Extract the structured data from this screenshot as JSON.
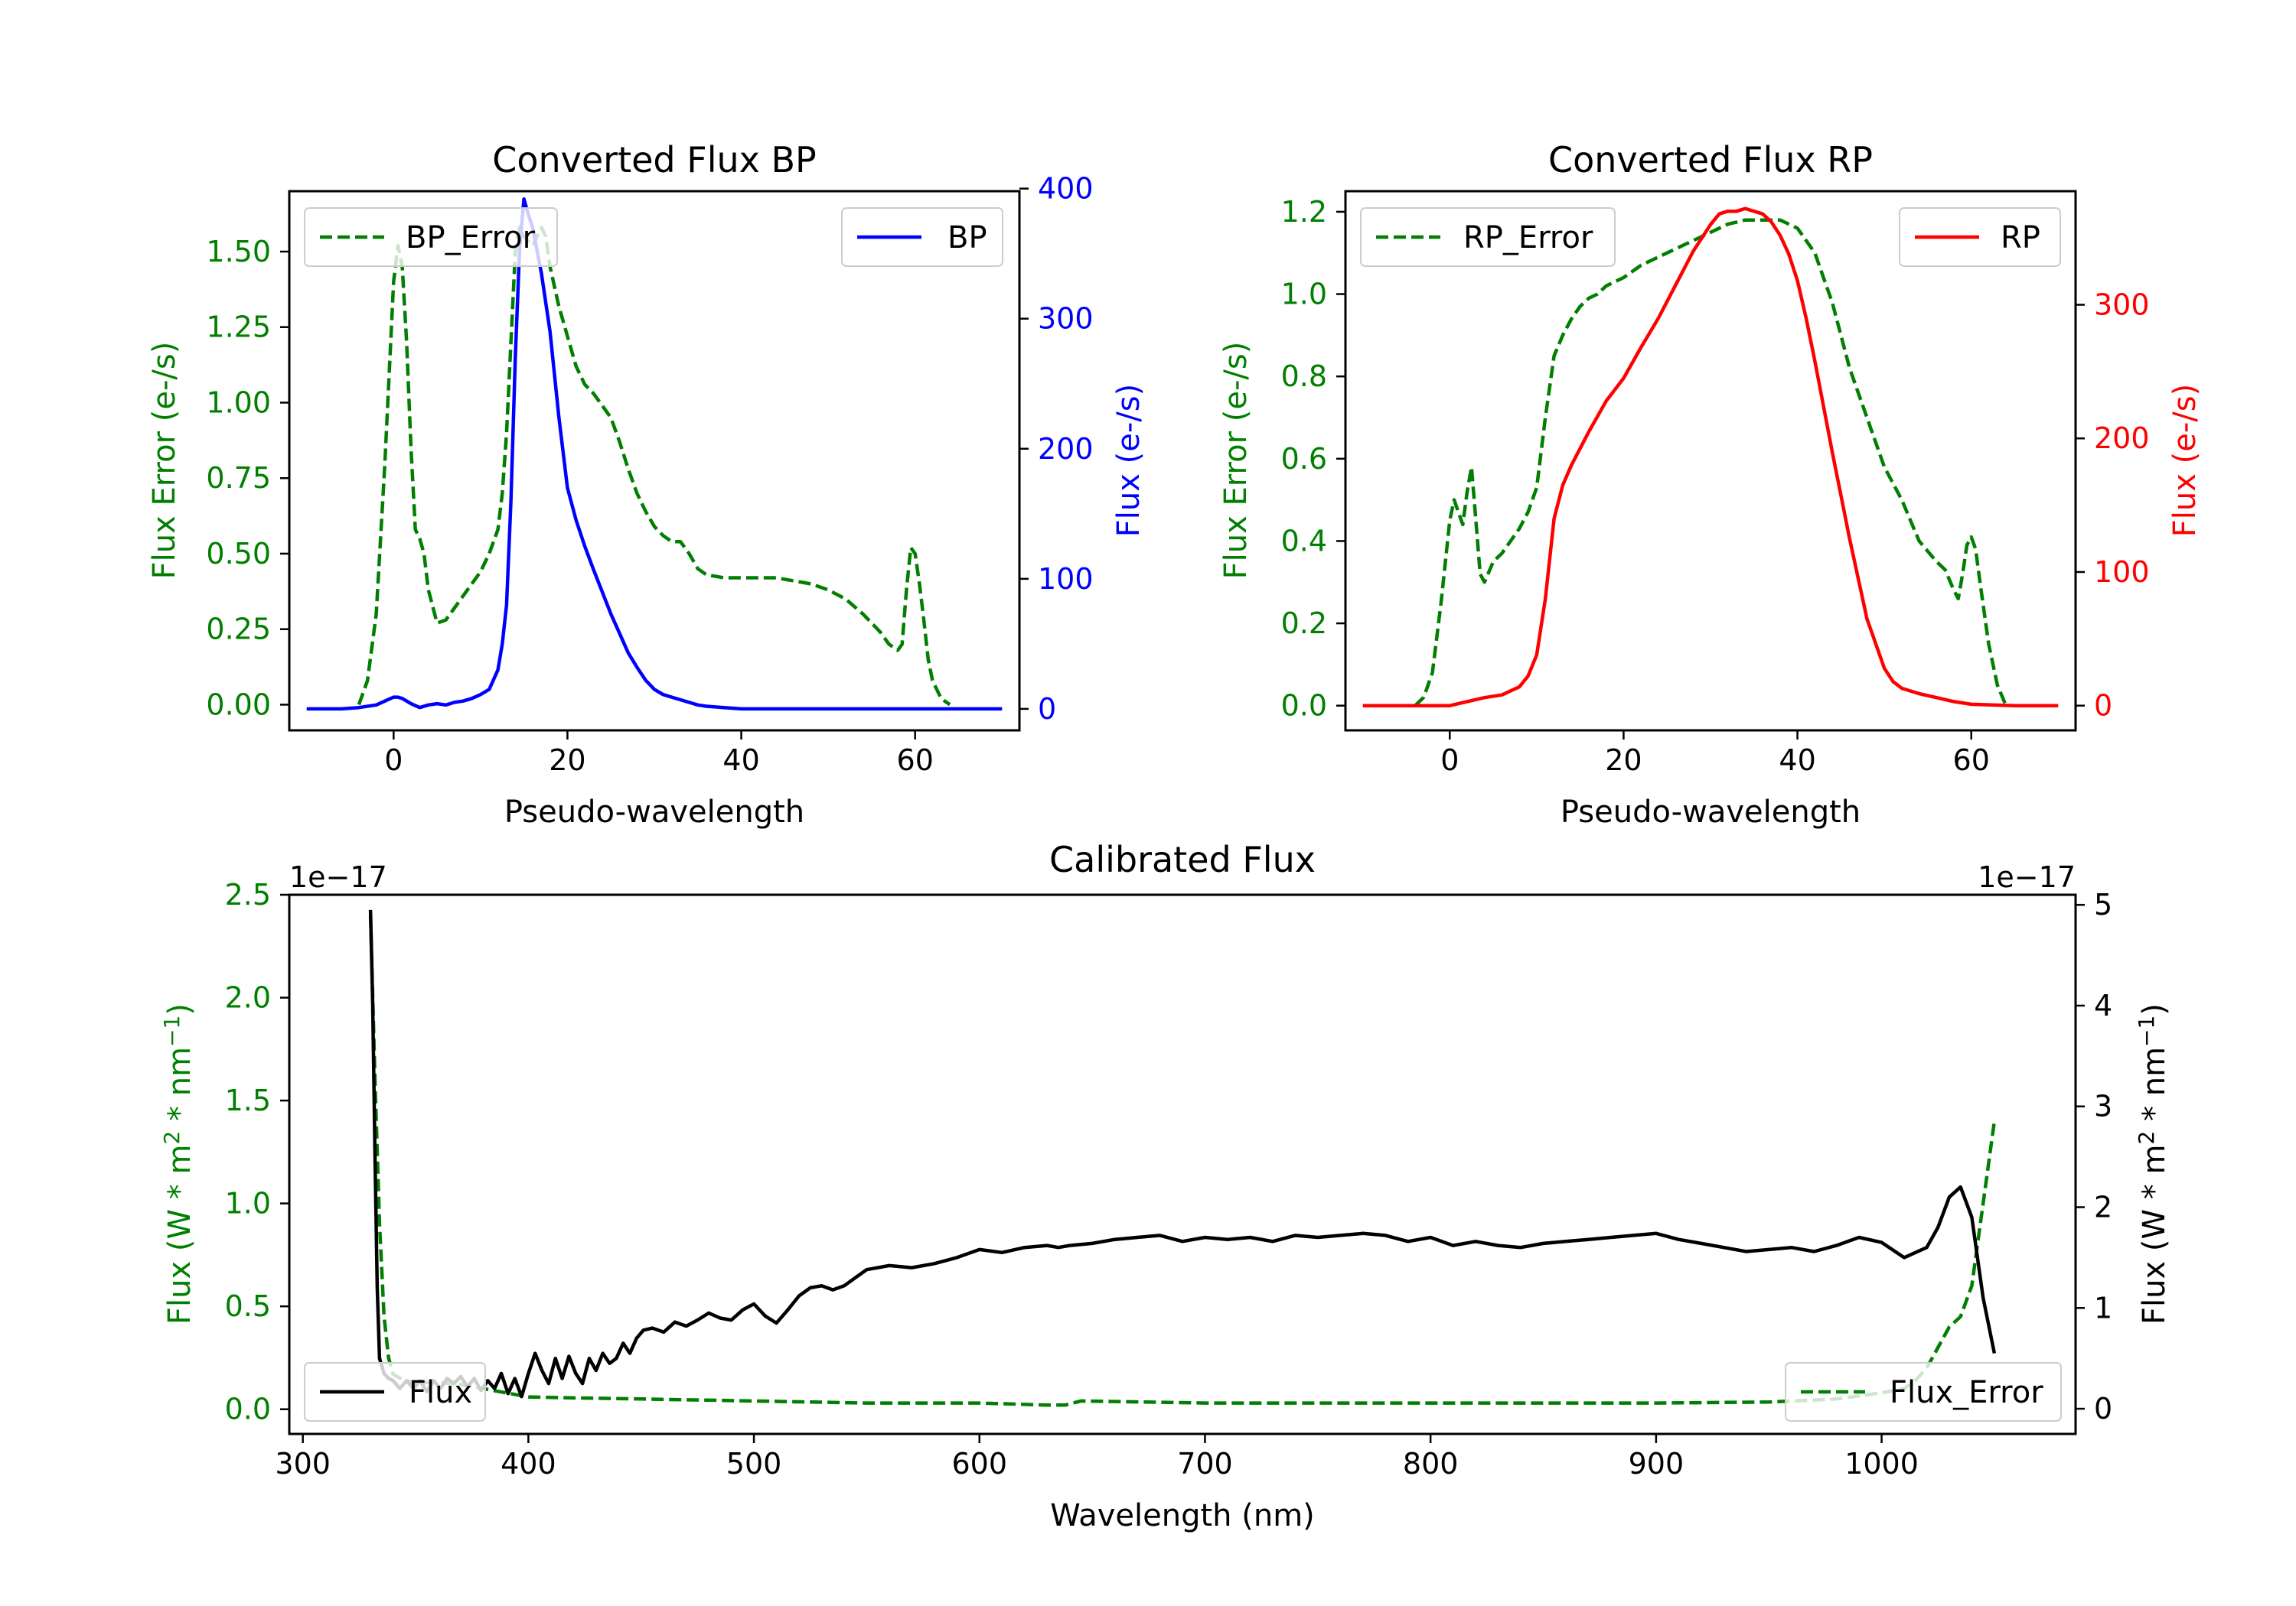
{
  "colors": {
    "green": "#007f00",
    "blue": "#0000ff",
    "red": "#ff0000",
    "black": "#000000"
  },
  "chart_data": [
    {
      "id": "bp",
      "type": "line",
      "title": "Converted Flux BP",
      "xlabel": "Pseudo-wavelength",
      "ylabel_left": "Flux Error (e-/s)",
      "ylabel_right": "Flux (e-/s)",
      "xlim": [
        -12,
        72
      ],
      "ylim_left": [
        -0.085,
        1.7
      ],
      "ylim_right": [
        -16.5,
        398
      ],
      "xticks": [
        0,
        20,
        40,
        60
      ],
      "xtick_labels": [
        "0",
        "20",
        "40",
        "60"
      ],
      "yticks_left": [
        0,
        0.25,
        0.5,
        0.75,
        1.0,
        1.25,
        1.5
      ],
      "ytick_labels_left": [
        "0.00",
        "0.25",
        "0.50",
        "0.75",
        "1.00",
        "1.25",
        "1.50"
      ],
      "yticks_right": [
        0,
        100,
        200,
        300,
        400
      ],
      "ytick_labels_right": [
        "0",
        "100",
        "200",
        "300",
        "400"
      ],
      "legend_left": {
        "label": "BP_Error",
        "position": "upper left"
      },
      "legend_right": {
        "label": "BP",
        "position": "upper right"
      },
      "series": [
        {
          "name": "BP_Error",
          "axis": "left",
          "color": "#007f00",
          "style": "dashed",
          "x": [
            -4,
            -3,
            -2,
            -1,
            0,
            0.5,
            1,
            1.5,
            2,
            2.5,
            3,
            3.5,
            4,
            5,
            6,
            7,
            8,
            9,
            10,
            11,
            12,
            12.5,
            13,
            13.5,
            14,
            14.5,
            15,
            16,
            17,
            17.5,
            18,
            19,
            20,
            21,
            22,
            23,
            24,
            25,
            26,
            27,
            28,
            29,
            30,
            31,
            32,
            33,
            34,
            35,
            36,
            38,
            40,
            42,
            44,
            46,
            48,
            50,
            52,
            54,
            56,
            57,
            58,
            58.5,
            59,
            59.5,
            60,
            60.5,
            61,
            61.5,
            62,
            63,
            64
          ],
          "values": [
            0.0,
            0.08,
            0.3,
            0.8,
            1.4,
            1.52,
            1.45,
            1.2,
            0.85,
            0.58,
            0.55,
            0.5,
            0.38,
            0.27,
            0.28,
            0.32,
            0.36,
            0.4,
            0.44,
            0.5,
            0.58,
            0.7,
            0.9,
            1.2,
            1.5,
            1.58,
            1.55,
            1.52,
            1.58,
            1.55,
            1.45,
            1.32,
            1.22,
            1.12,
            1.06,
            1.03,
            0.99,
            0.95,
            0.87,
            0.78,
            0.7,
            0.64,
            0.59,
            0.56,
            0.54,
            0.54,
            0.5,
            0.45,
            0.43,
            0.42,
            0.42,
            0.42,
            0.42,
            0.41,
            0.4,
            0.38,
            0.35,
            0.3,
            0.24,
            0.2,
            0.18,
            0.2,
            0.38,
            0.52,
            0.5,
            0.4,
            0.28,
            0.15,
            0.08,
            0.02,
            0.0
          ]
        },
        {
          "name": "BP",
          "axis": "right",
          "color": "#0000ff",
          "style": "solid",
          "x": [
            -10,
            -8,
            -6,
            -4,
            -2,
            -1,
            0,
            0.5,
            1,
            2,
            3,
            4,
            5,
            6,
            7,
            8,
            9,
            10,
            11,
            12,
            12.5,
            13,
            13.5,
            14,
            14.5,
            15,
            15.5,
            16,
            17,
            18,
            19,
            20,
            21,
            22,
            23,
            24,
            25,
            26,
            27,
            28,
            29,
            30,
            31,
            32,
            33,
            34,
            35,
            36,
            38,
            40,
            45,
            50,
            55,
            60,
            65,
            70
          ],
          "values": [
            0,
            0,
            0,
            1,
            3,
            6,
            9,
            9,
            8,
            4,
            1,
            3,
            4,
            3,
            5,
            6,
            8,
            11,
            15,
            30,
            50,
            80,
            160,
            270,
            355,
            392,
            380,
            370,
            335,
            290,
            225,
            170,
            145,
            125,
            107,
            90,
            73,
            58,
            43,
            32,
            22,
            15,
            11,
            9,
            7,
            5,
            3,
            2,
            1,
            0,
            0,
            0,
            0,
            0,
            0,
            0
          ]
        }
      ]
    },
    {
      "id": "rp",
      "type": "line",
      "title": "Converted Flux RP",
      "xlabel": "Pseudo-wavelength",
      "ylabel_left": "Flux Error (e-/s)",
      "ylabel_right": "Flux (e-/s)",
      "xlim": [
        -12,
        72
      ],
      "ylim_left": [
        -0.06,
        1.25
      ],
      "ylim_right": [
        -18.5,
        385
      ],
      "xticks": [
        0,
        20,
        40,
        60
      ],
      "xtick_labels": [
        "0",
        "20",
        "40",
        "60"
      ],
      "yticks_left": [
        0,
        0.2,
        0.4,
        0.6,
        0.8,
        1.0,
        1.2
      ],
      "ytick_labels_left": [
        "0.0",
        "0.2",
        "0.4",
        "0.6",
        "0.8",
        "1.0",
        "1.2"
      ],
      "yticks_right": [
        0,
        100,
        200,
        300
      ],
      "ytick_labels_right": [
        "0",
        "100",
        "200",
        "300"
      ],
      "legend_left": {
        "label": "RP_Error",
        "position": "upper left"
      },
      "legend_right": {
        "label": "RP",
        "position": "upper right"
      },
      "series": [
        {
          "name": "RP_Error",
          "axis": "left",
          "color": "#007f00",
          "style": "dashed",
          "x": [
            -4,
            -3,
            -2,
            -1,
            0,
            0.5,
            1,
            1.5,
            2,
            2.5,
            3,
            3.5,
            4,
            5,
            6,
            7,
            8,
            9,
            10,
            11,
            12,
            13,
            14,
            15,
            16,
            17,
            18,
            19,
            20,
            22,
            24,
            26,
            28,
            30,
            32,
            34,
            36,
            38,
            40,
            42,
            43,
            44,
            45,
            46,
            48,
            50,
            52,
            54,
            56,
            57,
            58,
            58.5,
            59,
            59.5,
            60,
            60.5,
            61,
            62,
            63,
            64
          ],
          "values": [
            0.0,
            0.02,
            0.08,
            0.25,
            0.45,
            0.5,
            0.47,
            0.44,
            0.52,
            0.58,
            0.45,
            0.32,
            0.3,
            0.35,
            0.37,
            0.4,
            0.43,
            0.47,
            0.53,
            0.7,
            0.85,
            0.9,
            0.94,
            0.97,
            0.99,
            1.0,
            1.02,
            1.03,
            1.04,
            1.07,
            1.09,
            1.11,
            1.13,
            1.15,
            1.17,
            1.18,
            1.18,
            1.18,
            1.16,
            1.1,
            1.04,
            0.98,
            0.9,
            0.82,
            0.7,
            0.58,
            0.5,
            0.4,
            0.35,
            0.33,
            0.28,
            0.26,
            0.32,
            0.39,
            0.41,
            0.38,
            0.3,
            0.15,
            0.05,
            0.0
          ]
        },
        {
          "name": "RP",
          "axis": "right",
          "color": "#ff0000",
          "style": "solid",
          "x": [
            -10,
            -6,
            -2,
            0,
            2,
            4,
            6,
            8,
            9,
            10,
            11,
            12,
            13,
            14,
            16,
            18,
            20,
            22,
            24,
            26,
            28,
            30,
            31,
            32,
            33,
            34,
            35,
            36,
            37,
            38,
            39,
            40,
            41,
            42,
            44,
            46,
            48,
            50,
            51,
            52,
            53,
            54,
            56,
            58,
            60,
            65,
            70
          ],
          "values": [
            0,
            0,
            0,
            0,
            3,
            6,
            8,
            14,
            22,
            38,
            80,
            140,
            165,
            180,
            205,
            228,
            245,
            268,
            290,
            315,
            340,
            360,
            368,
            370,
            370,
            372,
            370,
            368,
            362,
            352,
            338,
            318,
            290,
            258,
            190,
            125,
            65,
            28,
            18,
            13,
            11,
            9,
            6,
            3,
            1,
            0,
            0
          ]
        }
      ]
    },
    {
      "id": "calibrated",
      "type": "line",
      "title": "Calibrated Flux",
      "xlabel": "Wavelength (nm)",
      "ylabel_left": "Flux (W * m2 * nm-1)",
      "ylabel_right": "Flux (W * m2 * nm-1)",
      "ylabel_sup": "2",
      "ylabel_exp": "−1",
      "ylabel_prefix": "Flux (W * m",
      "ylabel_mid": " * nm",
      "ylabel_suffix": ")",
      "offset_left": "1e−17",
      "offset_right": "1e−17",
      "xlim": [
        294,
        1086
      ],
      "ylim_left": [
        -0.12,
        2.5
      ],
      "ylim_right": [
        -0.25,
        5.1
      ],
      "xticks": [
        300,
        400,
        500,
        600,
        700,
        800,
        900,
        1000
      ],
      "xtick_labels": [
        "300",
        "400",
        "500",
        "600",
        "700",
        "800",
        "900",
        "1000"
      ],
      "yticks_left": [
        0,
        0.5,
        1.0,
        1.5,
        2.0,
        2.5
      ],
      "ytick_labels_left": [
        "0.0",
        "0.5",
        "1.0",
        "1.5",
        "2.0",
        "2.5"
      ],
      "yticks_right": [
        0,
        1,
        2,
        3,
        4,
        5
      ],
      "ytick_labels_right": [
        "0",
        "1",
        "2",
        "3",
        "4",
        "5"
      ],
      "legend_left": {
        "label": "Flux",
        "position": "lower left"
      },
      "legend_right": {
        "label": "Flux_Error",
        "position": "lower right"
      },
      "series": [
        {
          "name": "Flux_Error",
          "axis": "left",
          "color": "#007f00",
          "style": "dashed",
          "x": [
            330,
            332,
            334,
            336,
            338,
            340,
            345,
            350,
            360,
            370,
            380,
            390,
            400,
            420,
            450,
            500,
            550,
            600,
            630,
            638,
            645,
            700,
            750,
            800,
            850,
            900,
            950,
            980,
            1000,
            1010,
            1015,
            1020,
            1025,
            1030,
            1035,
            1040,
            1045,
            1050
          ],
          "values": [
            2.4,
            1.6,
            0.9,
            0.45,
            0.25,
            0.17,
            0.14,
            0.13,
            0.13,
            0.12,
            0.1,
            0.08,
            0.06,
            0.055,
            0.05,
            0.04,
            0.03,
            0.03,
            0.02,
            0.02,
            0.04,
            0.03,
            0.03,
            0.03,
            0.03,
            0.03,
            0.035,
            0.05,
            0.08,
            0.1,
            0.14,
            0.2,
            0.3,
            0.4,
            0.45,
            0.6,
            1.0,
            1.4
          ]
        },
        {
          "name": "Flux",
          "axis": "right",
          "color": "#000000",
          "style": "solid",
          "x": [
            330,
            331,
            332,
            333,
            334,
            336,
            338,
            340,
            343,
            346,
            349,
            352,
            355,
            358,
            361,
            364,
            367,
            370,
            373,
            376,
            379,
            382,
            385,
            388,
            391,
            394,
            397,
            400,
            403,
            406,
            409,
            412,
            415,
            418,
            421,
            424,
            427,
            430,
            433,
            436,
            439,
            442,
            445,
            448,
            451,
            455,
            460,
            465,
            470,
            475,
            480,
            485,
            490,
            495,
            500,
            505,
            510,
            515,
            520,
            525,
            530,
            535,
            540,
            545,
            550,
            560,
            570,
            580,
            590,
            600,
            610,
            620,
            630,
            635,
            640,
            650,
            660,
            670,
            680,
            690,
            700,
            710,
            720,
            730,
            740,
            750,
            760,
            770,
            780,
            790,
            800,
            810,
            820,
            830,
            840,
            850,
            860,
            870,
            880,
            890,
            900,
            910,
            920,
            930,
            940,
            950,
            960,
            970,
            980,
            990,
            1000,
            1010,
            1020,
            1025,
            1030,
            1035,
            1040,
            1045,
            1050
          ],
          "values": [
            4.95,
            4.0,
            2.5,
            1.2,
            0.5,
            0.35,
            0.3,
            0.28,
            0.2,
            0.28,
            0.2,
            0.28,
            0.17,
            0.28,
            0.2,
            0.3,
            0.25,
            0.32,
            0.22,
            0.3,
            0.18,
            0.28,
            0.2,
            0.35,
            0.15,
            0.3,
            0.12,
            0.35,
            0.55,
            0.38,
            0.25,
            0.5,
            0.3,
            0.52,
            0.35,
            0.25,
            0.5,
            0.38,
            0.55,
            0.45,
            0.5,
            0.65,
            0.55,
            0.7,
            0.78,
            0.8,
            0.76,
            0.86,
            0.82,
            0.88,
            0.95,
            0.9,
            0.88,
            0.98,
            1.04,
            0.92,
            0.85,
            0.98,
            1.12,
            1.2,
            1.22,
            1.18,
            1.22,
            1.3,
            1.38,
            1.42,
            1.4,
            1.44,
            1.5,
            1.58,
            1.55,
            1.6,
            1.62,
            1.6,
            1.62,
            1.64,
            1.68,
            1.7,
            1.72,
            1.66,
            1.7,
            1.68,
            1.7,
            1.66,
            1.72,
            1.7,
            1.72,
            1.74,
            1.72,
            1.66,
            1.7,
            1.62,
            1.66,
            1.62,
            1.6,
            1.64,
            1.66,
            1.68,
            1.7,
            1.72,
            1.74,
            1.68,
            1.64,
            1.6,
            1.56,
            1.58,
            1.6,
            1.56,
            1.62,
            1.7,
            1.65,
            1.5,
            1.6,
            1.8,
            2.1,
            2.2,
            1.9,
            1.1,
            0.55
          ]
        }
      ]
    }
  ]
}
